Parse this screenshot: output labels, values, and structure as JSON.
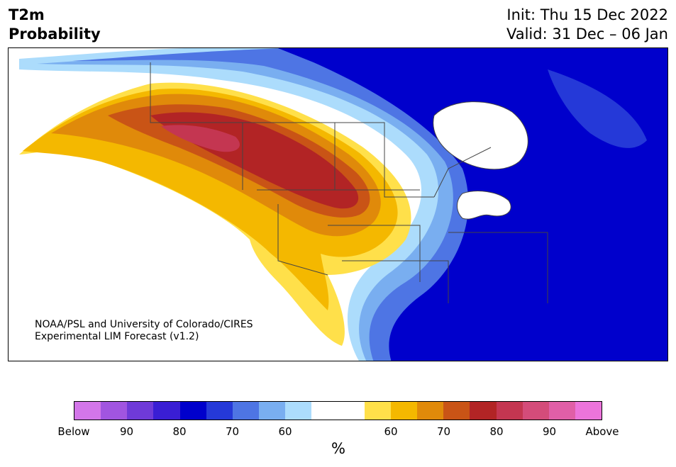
{
  "header": {
    "variable": "T2m",
    "quantity": "Probability",
    "init": "Init: Thu 15 Dec 2022",
    "valid": "Valid: 31 Dec – 06 Jan"
  },
  "credit": {
    "line1": "NOAA/PSL and University of Colorado/CIRES",
    "line2": "Experimental LIM Forecast (v1.2)"
  },
  "colorbar": {
    "colors": [
      "#d376e9",
      "#a155e0",
      "#6f3ad8",
      "#3a1ed4",
      "#0000cc",
      "#2539d8",
      "#4e75e4",
      "#79aef0",
      "#acdcfc",
      "#ffffff",
      "#ffffff",
      "#ffe04a",
      "#f4b800",
      "#e08a0a",
      "#c95416",
      "#b22425",
      "#c43651",
      "#d44c7a",
      "#e05fa7",
      "#ec74db"
    ],
    "ticks": [
      "Below",
      "90",
      "80",
      "70",
      "60",
      "60",
      "70",
      "80",
      "90",
      "Above"
    ],
    "unit": "%"
  },
  "map": {
    "land_color": "#ffffff",
    "border_color": "#444444"
  }
}
